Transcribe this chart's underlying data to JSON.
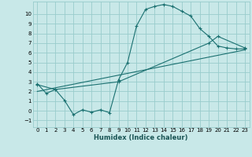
{
  "xlabel": "Humidex (Indice chaleur)",
  "bg_color": "#c8e8e8",
  "grid_color": "#99cccc",
  "line_color": "#1a7070",
  "xlim": [
    -0.5,
    23.5
  ],
  "ylim": [
    -1.7,
    11.3
  ],
  "xticks": [
    0,
    1,
    2,
    3,
    4,
    5,
    6,
    7,
    8,
    9,
    10,
    11,
    12,
    13,
    14,
    15,
    16,
    17,
    18,
    19,
    20,
    21,
    22,
    23
  ],
  "yticks": [
    -1,
    0,
    1,
    2,
    3,
    4,
    5,
    6,
    7,
    8,
    9,
    10
  ],
  "curve1_x": [
    0,
    1,
    2,
    3,
    4,
    5,
    6,
    7,
    8,
    9,
    10,
    11,
    12,
    13,
    14,
    15,
    16,
    17,
    18,
    19,
    20,
    21,
    22,
    23
  ],
  "curve1_y": [
    2.8,
    1.8,
    2.2,
    1.1,
    -0.4,
    0.1,
    -0.15,
    0.1,
    -0.2,
    3.2,
    5.0,
    8.8,
    10.5,
    10.8,
    11.0,
    10.8,
    10.3,
    9.8,
    8.5,
    7.7,
    6.7,
    6.5,
    6.4,
    6.4
  ],
  "curve2_x": [
    0,
    2,
    9,
    19,
    20,
    23
  ],
  "curve2_y": [
    2.7,
    2.2,
    3.0,
    7.0,
    7.7,
    6.5
  ],
  "curve3_x": [
    0,
    23
  ],
  "curve3_y": [
    2.0,
    6.3
  ]
}
